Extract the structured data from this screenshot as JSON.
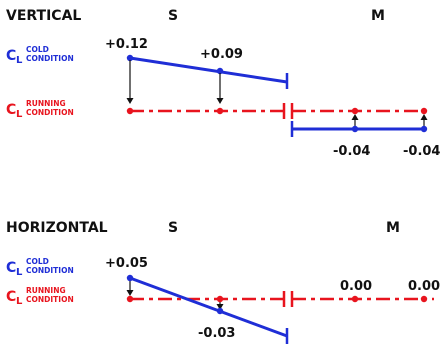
{
  "colors": {
    "cold": "#1f2ed6",
    "running": "#e8141e",
    "text": "#111111"
  },
  "legend": {
    "c": "C",
    "sub": "L",
    "cold_top": "COLD",
    "cold_bottom": "CONDITION",
    "run_top": "RUNNING",
    "run_bottom": "CONDITION"
  },
  "vertical": {
    "title": "VERTICAL",
    "col_s": "S",
    "col_m": "M",
    "values": {
      "cold_1": "+0.12",
      "cold_2": "+0.09",
      "m_1": "-0.04",
      "m_2": "-0.04"
    }
  },
  "horizontal": {
    "title": "HORIZONTAL",
    "col_s": "S",
    "col_m": "M",
    "values": {
      "cold_1": "+0.05",
      "cold_2": "-0.03",
      "m_1": "0.00",
      "m_2": "0.00"
    }
  }
}
